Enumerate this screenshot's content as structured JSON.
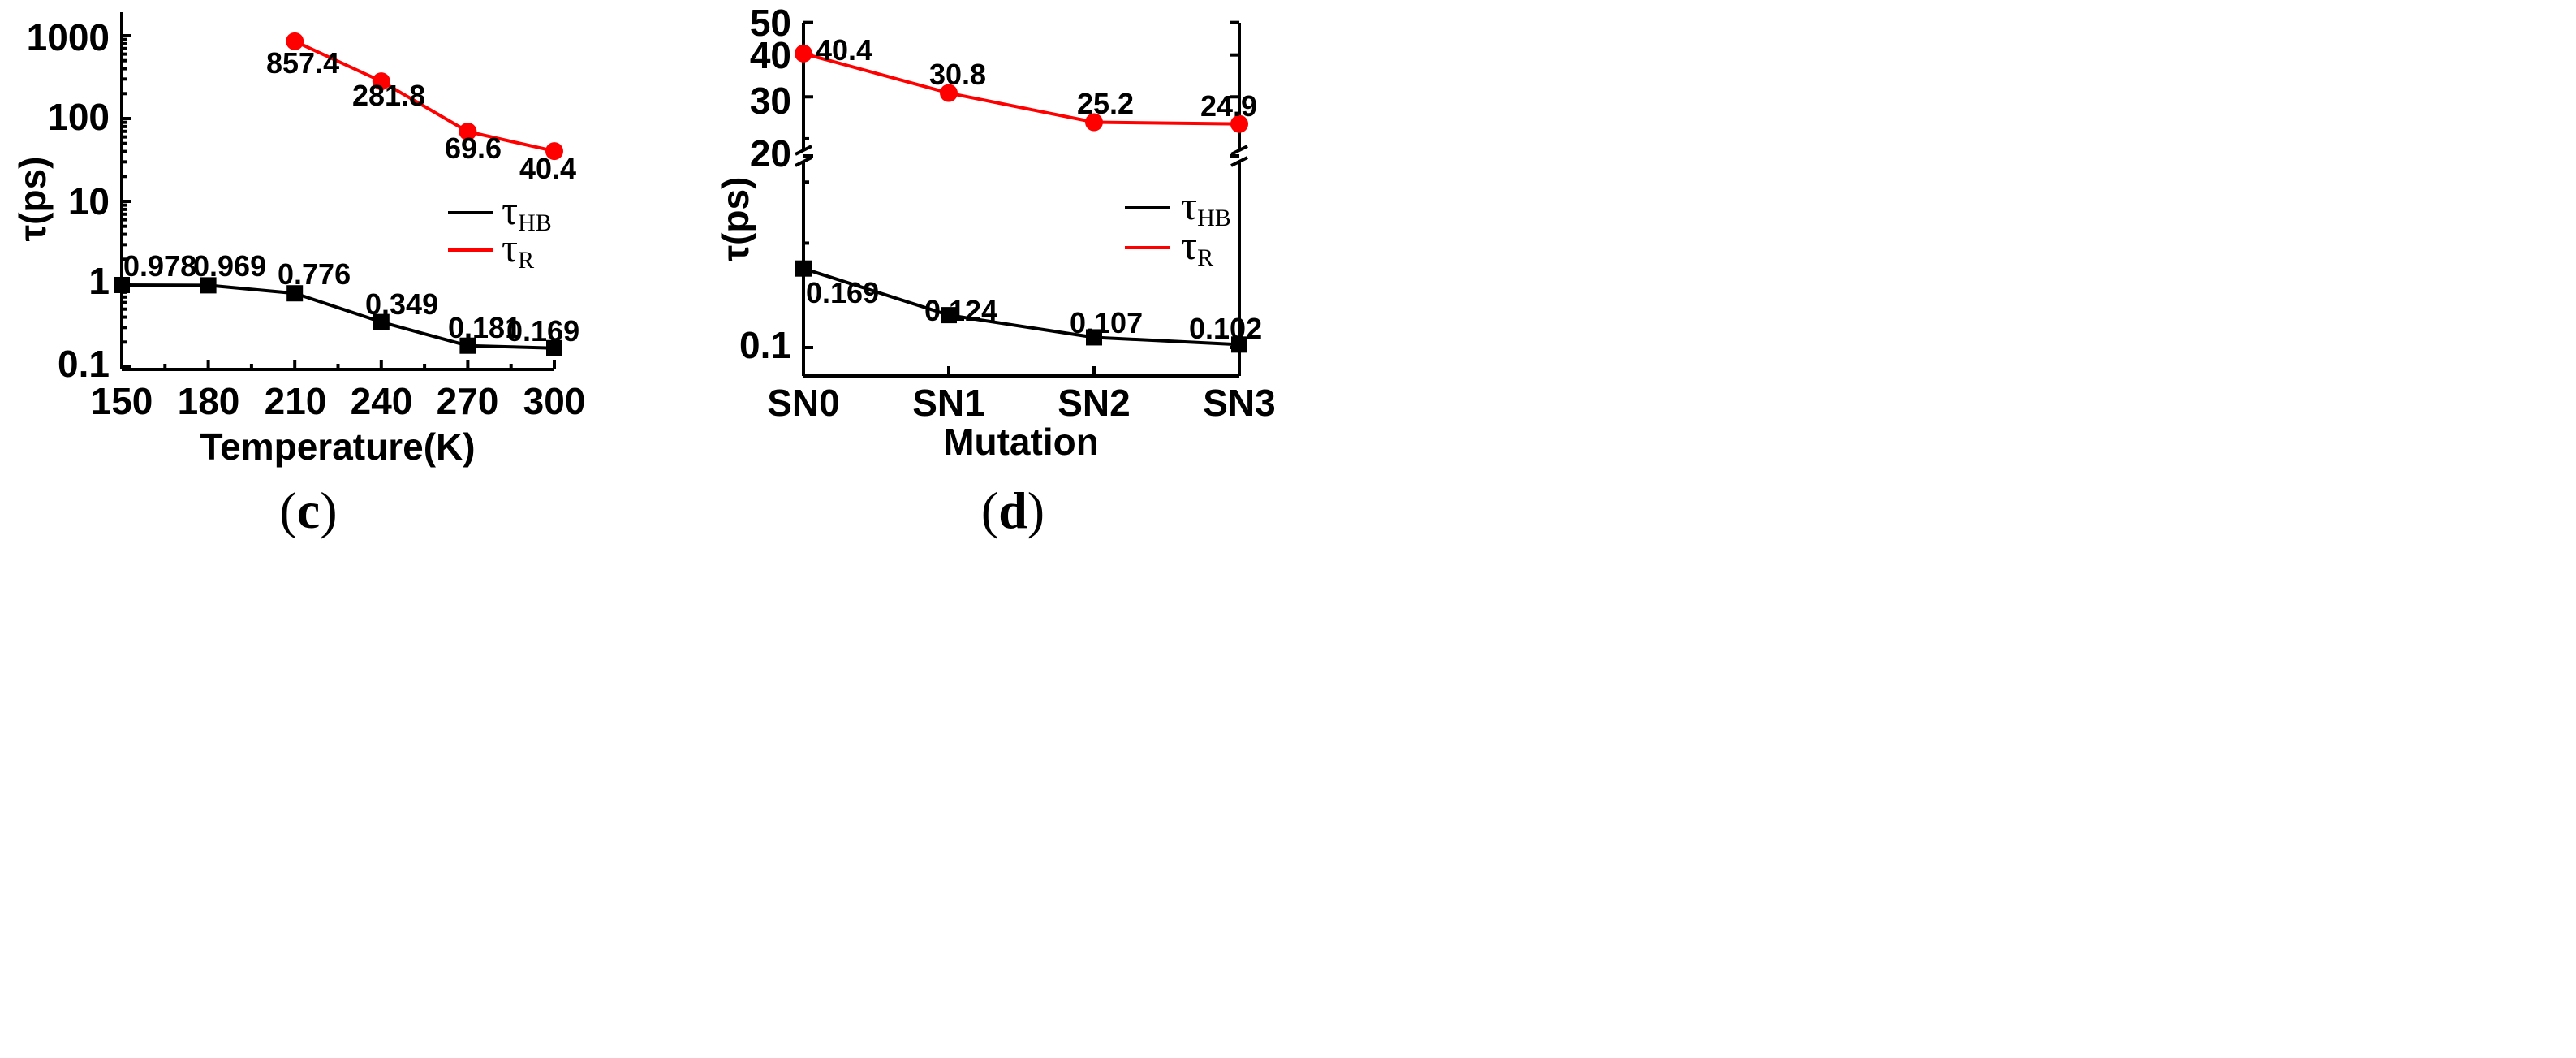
{
  "chart_data": [
    {
      "panel": "(c)",
      "panel_letter": "c",
      "type": "line",
      "y_scale": "log",
      "xlabel": "Temperature(K)",
      "ylabel": "τ(ps)",
      "x_ticks": [
        "150",
        "180",
        "210",
        "240",
        "270",
        "300"
      ],
      "y_ticks": [
        "0.1",
        "1",
        "10",
        "100",
        "1000"
      ],
      "xlim": [
        150,
        300
      ],
      "ylim": [
        0.1,
        2000
      ],
      "series": [
        {
          "name": "τHB",
          "legend_main": "τ",
          "legend_sub": "HB",
          "color": "#000000",
          "marker": "square",
          "x": [
            150,
            180,
            210,
            240,
            270,
            300
          ],
          "values": [
            0.978,
            0.969,
            0.776,
            0.349,
            0.181,
            0.169
          ],
          "labels": [
            "0.978",
            "0.969",
            "0.776",
            "0.349",
            "0.181",
            "0.169"
          ]
        },
        {
          "name": "τR",
          "legend_main": "τ",
          "legend_sub": "R",
          "color": "#ff0000",
          "marker": "circle",
          "x": [
            210,
            240,
            270,
            300
          ],
          "values": [
            857.4,
            281.8,
            69.6,
            40.4
          ],
          "labels": [
            "857.4",
            "281.8",
            "69.6",
            "40.4"
          ]
        }
      ]
    },
    {
      "panel": "(d)",
      "panel_letter": "d",
      "type": "line",
      "y_scale": "log with axis break",
      "xlabel": "Mutation",
      "ylabel": "τ(ps)",
      "categories": [
        "SN0",
        "SN1",
        "SN2",
        "SN3"
      ],
      "y_ticks_upper": [
        "20",
        "30",
        "40",
        "50"
      ],
      "y_ticks_lower": [
        "0.1"
      ],
      "ylim_upper": [
        20,
        50
      ],
      "series": [
        {
          "name": "τHB",
          "legend_main": "τ",
          "legend_sub": "HB",
          "color": "#000000",
          "marker": "square",
          "values": [
            0.169,
            0.124,
            0.107,
            0.102
          ],
          "labels": [
            "0.169",
            "0.124",
            "0.107",
            "0.102"
          ]
        },
        {
          "name": "τR",
          "legend_main": "τ",
          "legend_sub": "R",
          "color": "#ff0000",
          "marker": "circle",
          "values": [
            40.4,
            30.8,
            25.2,
            24.9
          ],
          "labels": [
            "40.4",
            "30.8",
            "25.2",
            "24.9"
          ]
        }
      ]
    }
  ]
}
